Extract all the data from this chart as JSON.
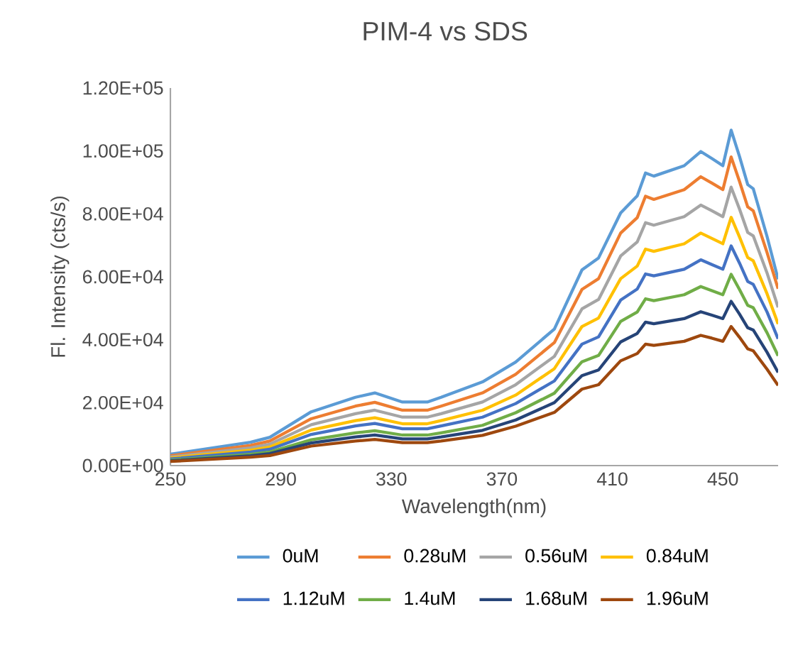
{
  "chart_data": {
    "type": "line",
    "title": "PIM-4 vs SDS",
    "xlabel": "Wavelength(nm)",
    "ylabel": "Fl. Intensity (cts/s)",
    "x": [
      250,
      279,
      286,
      301,
      317,
      324,
      334,
      343,
      348,
      363,
      375,
      389,
      399,
      405,
      413,
      419,
      422,
      425,
      436,
      442,
      446,
      450,
      453,
      456,
      459,
      461,
      466,
      470
    ],
    "xlim": [
      250,
      470
    ],
    "xticks": [
      250,
      290,
      330,
      370,
      410,
      450
    ],
    "ylim": [
      0,
      120000
    ],
    "yticks": [
      {
        "value": 0,
        "label": "0.00E+00"
      },
      {
        "value": 20000,
        "label": "2.00E+04"
      },
      {
        "value": 40000,
        "label": "4.00E+04"
      },
      {
        "value": 60000,
        "label": "6.00E+04"
      },
      {
        "value": 80000,
        "label": "8.00E+04"
      },
      {
        "value": 100000,
        "label": "1.00E+05"
      },
      {
        "value": 120000,
        "label": "1.20E+05"
      }
    ],
    "legend": "bottom",
    "series": [
      {
        "name": "0uM",
        "color": "#5b9bd5",
        "values": [
          3600,
          7400,
          9000,
          17100,
          21700,
          23100,
          20200,
          20200,
          21700,
          26600,
          32900,
          43400,
          62200,
          66000,
          80300,
          85700,
          93000,
          92000,
          95300,
          99800,
          97600,
          95300,
          106600,
          98300,
          89300,
          88000,
          72800,
          59200
        ]
      },
      {
        "name": "0.28uM",
        "color": "#ed7d31",
        "values": [
          3100,
          6400,
          7800,
          14900,
          18900,
          20100,
          17600,
          17600,
          18900,
          23100,
          29000,
          39100,
          56000,
          59400,
          73900,
          78800,
          85600,
          84600,
          87700,
          91800,
          89800,
          87700,
          98100,
          90400,
          82200,
          81000,
          67700,
          56200
        ]
      },
      {
        "name": "0.56uM",
        "color": "#a5a5a5",
        "values": [
          2700,
          5600,
          6800,
          13000,
          16500,
          17600,
          15400,
          15400,
          16500,
          20200,
          25700,
          34700,
          49800,
          52800,
          66600,
          71100,
          77200,
          76400,
          79100,
          82800,
          81000,
          79100,
          88500,
          81600,
          74100,
          73000,
          61200,
          50300
        ]
      },
      {
        "name": "0.84uM",
        "color": "#ffc000",
        "values": [
          2400,
          4900,
          5900,
          11300,
          14300,
          15200,
          13300,
          13300,
          14300,
          17600,
          22400,
          30800,
          44200,
          46900,
          59400,
          63400,
          68800,
          68100,
          70500,
          73900,
          72200,
          70500,
          78900,
          72700,
          66100,
          65100,
          54600,
          45000
        ]
      },
      {
        "name": "1.12uM",
        "color": "#4472c4",
        "values": [
          2100,
          4300,
          5200,
          9900,
          12600,
          13400,
          11700,
          11700,
          12600,
          15400,
          19700,
          26900,
          38600,
          40900,
          52600,
          56100,
          60900,
          60300,
          62400,
          65400,
          63900,
          62400,
          69800,
          64400,
          58500,
          57600,
          48800,
          40300
        ]
      },
      {
        "name": "1.4uM",
        "color": "#70ad47",
        "values": [
          1700,
          3600,
          4300,
          8200,
          10400,
          11100,
          9700,
          9700,
          10400,
          12800,
          16800,
          23000,
          33000,
          35000,
          45800,
          48800,
          53000,
          52400,
          54300,
          56900,
          55600,
          54300,
          60800,
          56000,
          50900,
          50200,
          42200,
          34900
        ]
      },
      {
        "name": "1.68uM",
        "color": "#264478",
        "values": [
          1500,
          3100,
          3800,
          7200,
          9100,
          9700,
          8500,
          8500,
          9100,
          11200,
          14500,
          20000,
          28600,
          30400,
          39300,
          42000,
          45600,
          45100,
          46700,
          48900,
          47800,
          46700,
          52200,
          48200,
          43800,
          43100,
          36000,
          29600
        ]
      },
      {
        "name": "1.96uM",
        "color": "#9e480e",
        "values": [
          1300,
          2700,
          3200,
          6200,
          7800,
          8300,
          7300,
          7300,
          7800,
          9600,
          12500,
          16900,
          24300,
          25700,
          33300,
          35600,
          38600,
          38200,
          39500,
          41400,
          40500,
          39500,
          44200,
          40800,
          37100,
          36500,
          30600,
          25500
        ]
      }
    ]
  }
}
